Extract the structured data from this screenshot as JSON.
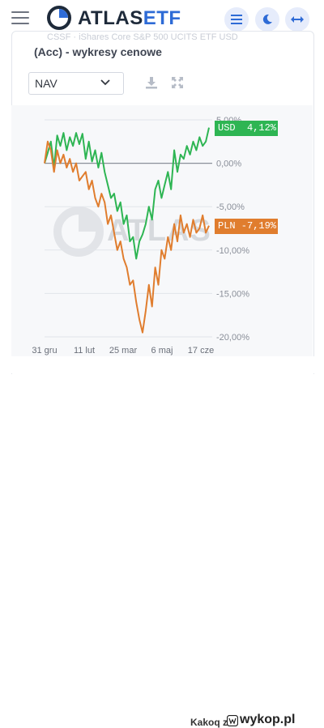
{
  "header": {
    "brand_atlas": "ATLAS",
    "brand_etf": "ETF",
    "icons": [
      "hamburger-icon",
      "menu-lines-icon",
      "moon-icon",
      "swap-arrows-icon"
    ]
  },
  "faded_text": "CSSF · iShares Core S&P 500 UCITS ETF USD",
  "card": {
    "title": "(Acc) - wykresy cenowe",
    "select_value": "NAV",
    "tools": [
      "download-icon",
      "expand-icon"
    ]
  },
  "tags": {
    "usd": "USD  4,12%",
    "pln": "PLN -7,19%"
  },
  "colors": {
    "usd": "#2eb553",
    "pln": "#e07d2e",
    "accent": "#2e6bd6"
  },
  "chart_data": {
    "type": "line",
    "y_tick_labels": [
      "5,00%",
      "0,00%",
      "-5,00%",
      "-10,00%",
      "-15,00%",
      "-20,00%"
    ],
    "y_ticks": [
      5,
      0,
      -5,
      -10,
      -15,
      -20
    ],
    "ylim": [
      -20,
      5
    ],
    "x_tick_labels": [
      "31 gru",
      "11 lut",
      "25 mar",
      "6 maj",
      "17 cze"
    ],
    "series": [
      {
        "name": "USD",
        "color": "#2eb553",
        "values": [
          0,
          1.2,
          2.5,
          -0.5,
          3.2,
          2,
          3.5,
          1.5,
          3,
          2,
          3.5,
          2.2,
          3.4,
          0.5,
          2.5,
          0.2,
          1.5,
          -0.5,
          1.2,
          -1,
          -2.5,
          -4,
          -3.5,
          -5.5,
          -4.5,
          -7,
          -6,
          -9,
          -8.5,
          -11,
          -9,
          -8.2,
          -7,
          -5,
          -6.5,
          -3,
          -2,
          -4,
          -2.5,
          -1,
          -3,
          1.5,
          -1,
          1,
          0.5,
          2,
          1,
          2.5,
          1.5,
          3,
          2,
          2.5,
          4.1
        ]
      },
      {
        "name": "PLN",
        "color": "#e07d2e",
        "values": [
          0,
          2.5,
          1.5,
          -1,
          1.5,
          0,
          1,
          -0.5,
          0.5,
          -1,
          0,
          -2,
          -1.5,
          -1,
          -3,
          -2,
          -4,
          -5,
          -3.5,
          -4.5,
          -7,
          -6,
          -8,
          -10,
          -9,
          -11,
          -12,
          -14,
          -13.5,
          -16,
          -18,
          -19.5,
          -17,
          -14,
          -16.5,
          -12,
          -14,
          -10,
          -11,
          -8.5,
          -10,
          -7,
          -9,
          -6,
          -8,
          -7,
          -8.5,
          -6.5,
          -8,
          -7.5,
          -6,
          -8,
          -7.19
        ]
      }
    ]
  },
  "footer": {
    "credit": "Kakoq z",
    "site": "wykop.pl"
  }
}
